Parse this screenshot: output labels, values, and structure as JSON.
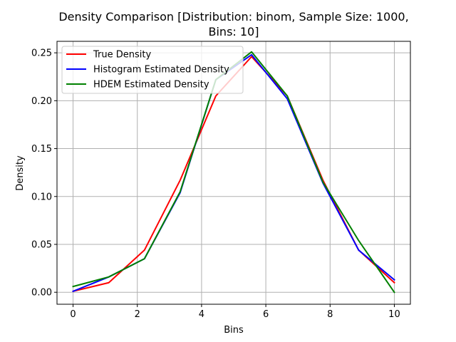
{
  "chart_data": {
    "type": "line",
    "title_line1": "Density Comparison [Distribution: binom, Sample Size: 1000,",
    "title_line2": "Bins: 10]",
    "xlabel": "Bins",
    "ylabel": "Density",
    "xlim": [
      -0.5,
      10.5
    ],
    "ylim": [
      -0.0125,
      0.262
    ],
    "xticks": [
      0,
      2,
      4,
      6,
      8,
      10
    ],
    "yticks": [
      0.0,
      0.05,
      0.1,
      0.15,
      0.2,
      0.25
    ],
    "xtick_labels": [
      "0",
      "2",
      "4",
      "6",
      "8",
      "10"
    ],
    "ytick_labels": [
      "0.00",
      "0.05",
      "0.10",
      "0.15",
      "0.20",
      "0.25"
    ],
    "grid": true,
    "legend_position": "top-left",
    "x": [
      0,
      1.111,
      2.222,
      3.333,
      4.444,
      5.556,
      6.667,
      7.778,
      8.889,
      10
    ],
    "series": [
      {
        "name": "True Density",
        "color": "#ff0000",
        "values": [
          0.001,
          0.01,
          0.044,
          0.117,
          0.205,
          0.246,
          0.205,
          0.117,
          0.044,
          0.01
        ]
      },
      {
        "name": "Histogram Estimated Density",
        "color": "#0000ff",
        "values": [
          0.001,
          0.016,
          0.035,
          0.104,
          0.222,
          0.248,
          0.202,
          0.114,
          0.044,
          0.013
        ]
      },
      {
        "name": "HDEM Estimated Density",
        "color": "#008000",
        "values": [
          0.006,
          0.016,
          0.035,
          0.105,
          0.222,
          0.251,
          0.205,
          0.115,
          0.054,
          0.0
        ]
      }
    ]
  }
}
